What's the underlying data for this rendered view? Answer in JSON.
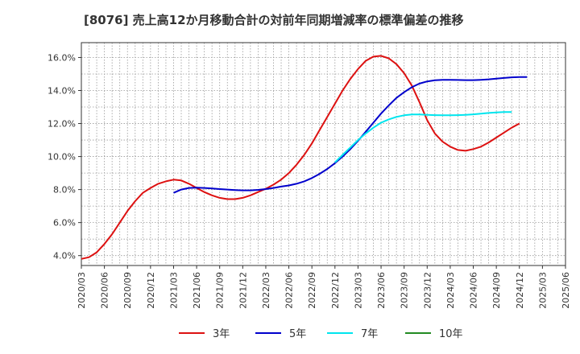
{
  "chart_data": {
    "type": "line",
    "title": "[8076]  売上高12か月移動合計の対前年同期増減率の標準偏差の推移",
    "xlabel": "",
    "ylabel": "",
    "x_ticks": [
      "2020/03",
      "2020/06",
      "2020/09",
      "2020/12",
      "2021/03",
      "2021/06",
      "2021/09",
      "2021/12",
      "2022/03",
      "2022/06",
      "2022/09",
      "2022/12",
      "2023/03",
      "2023/06",
      "2023/09",
      "2023/12",
      "2024/03",
      "2024/06",
      "2024/09",
      "2024/12",
      "2025/03",
      "2025/06"
    ],
    "y_ticks": [
      "4.0%",
      "6.0%",
      "8.0%",
      "10.0%",
      "12.0%",
      "14.0%",
      "16.0%"
    ],
    "ylim": [
      3.4,
      16.9
    ],
    "grid": true,
    "legend_position": "bottom",
    "colors": {
      "3年": "#dd1111",
      "5年": "#0000cc",
      "7年": "#00e5ee",
      "10年": "#228b22"
    },
    "series": [
      {
        "name": "3年",
        "start_index": 0,
        "values": [
          3.8,
          3.9,
          4.2,
          4.7,
          5.3,
          6.0,
          6.7,
          7.3,
          7.8,
          8.1,
          8.35,
          8.5,
          8.6,
          8.55,
          8.35,
          8.1,
          7.85,
          7.65,
          7.5,
          7.42,
          7.42,
          7.5,
          7.65,
          7.85,
          8.05,
          8.3,
          8.6,
          9.0,
          9.5,
          10.1,
          10.8,
          11.6,
          12.4,
          13.2,
          14.0,
          14.7,
          15.3,
          15.8,
          16.05,
          16.1,
          15.95,
          15.6,
          15.05,
          14.3,
          13.3,
          12.2,
          11.4,
          10.9,
          10.6,
          10.4,
          10.35,
          10.45,
          10.6,
          10.85,
          11.15,
          11.45,
          11.75,
          12.0
        ]
      },
      {
        "name": "5年",
        "start_index": 12,
        "values": [
          7.8,
          8.0,
          8.1,
          8.12,
          8.1,
          8.07,
          8.03,
          8.0,
          7.97,
          7.95,
          7.95,
          7.98,
          8.03,
          8.1,
          8.18,
          8.25,
          8.35,
          8.5,
          8.7,
          8.95,
          9.25,
          9.6,
          10.0,
          10.45,
          10.95,
          11.5,
          12.05,
          12.6,
          13.1,
          13.55,
          13.9,
          14.2,
          14.42,
          14.55,
          14.62,
          14.65,
          14.65,
          14.64,
          14.63,
          14.63,
          14.65,
          14.68,
          14.72,
          14.76,
          14.8,
          14.82,
          14.82
        ]
      },
      {
        "name": "7年",
        "start_index": 33,
        "values": [
          9.65,
          10.1,
          10.55,
          11.0,
          11.4,
          11.75,
          12.05,
          12.25,
          12.4,
          12.5,
          12.55,
          12.55,
          12.53,
          12.51,
          12.5,
          12.5,
          12.51,
          12.53,
          12.56,
          12.6,
          12.64,
          12.67,
          12.7,
          12.7
        ]
      },
      {
        "name": "10年",
        "start_index": 0,
        "values": []
      }
    ]
  }
}
